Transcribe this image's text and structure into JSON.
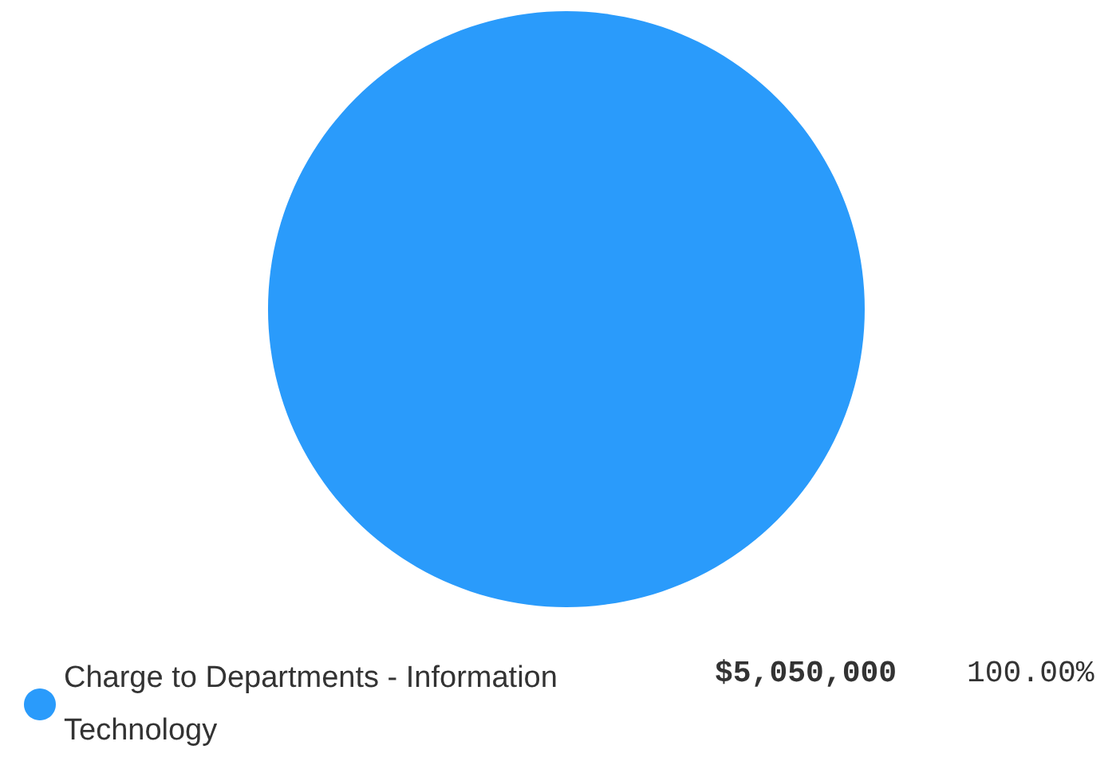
{
  "chart_data": {
    "type": "pie",
    "categories": [
      "Charge to Departments - Information Technology"
    ],
    "values": [
      5050000
    ],
    "colors": [
      "#2a9bfb"
    ],
    "value_labels": [
      "$5,050,000"
    ],
    "annotations": [
      "100.00%"
    ],
    "legend": "bottom"
  }
}
